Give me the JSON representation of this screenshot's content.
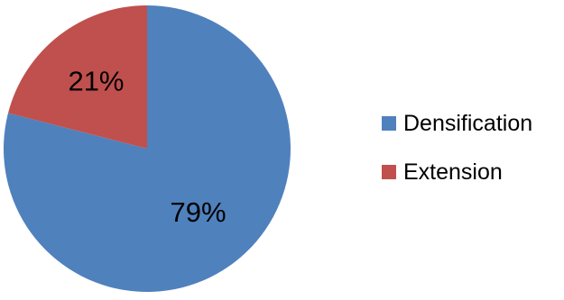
{
  "chart_data": {
    "type": "pie",
    "categories": [
      "Densification",
      "Extension"
    ],
    "values": [
      79,
      21
    ],
    "data_labels": [
      "79%",
      "21%"
    ],
    "colors": [
      "#4F81BD",
      "#C0504D"
    ],
    "legend": {
      "position": "right",
      "entries": [
        {
          "label": "Densification",
          "color": "#4F81BD"
        },
        {
          "label": "Extension",
          "color": "#C0504D"
        }
      ]
    },
    "start_angle_deg": 0,
    "direction": "clockwise"
  }
}
